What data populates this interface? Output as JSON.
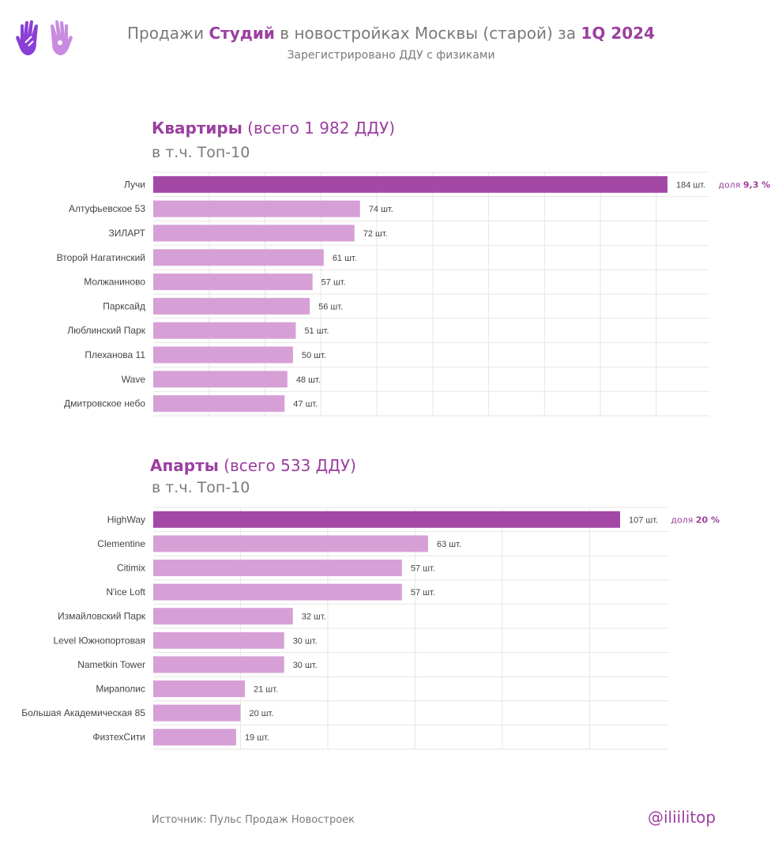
{
  "header": {
    "title_parts": [
      {
        "text": "Продажи ",
        "hl": false
      },
      {
        "text": "Студий",
        "hl": true
      },
      {
        "text": " в новостройках Москвы (старой) за ",
        "hl": false
      },
      {
        "text": "1Q 2024",
        "hl": true
      }
    ],
    "subtitle": "Зарегистрировано ДДУ с физиками"
  },
  "colors": {
    "accent": "#9b3fa0",
    "bar_top": "#a348a5",
    "bar": "#d6a0d6",
    "text_gray": "#7a7a7a",
    "grid": "#e6e6e6"
  },
  "icons": [
    "hands-logo-icon"
  ],
  "chart_data": [
    {
      "type": "bar",
      "orientation": "horizontal",
      "heading_bold": "Квартиры",
      "heading_rest": " (всего 1 982 ДДУ)",
      "subheading": "в т.ч. Топ-10",
      "categories": [
        "Лучи",
        "Алтуфьевское 53",
        "ЗИЛАРТ",
        "Второй Нагатинский",
        "Молжаниново",
        "Парксайд",
        "Люблинский Парк",
        "Плеханова 11",
        "Wave",
        "Дмитровское небо"
      ],
      "values": [
        184,
        74,
        72,
        61,
        57,
        56,
        51,
        50,
        48,
        47
      ],
      "value_labels": [
        "184 шт.",
        "74 шт.",
        "72 шт.",
        "61 шт.",
        "57 шт.",
        "56 шт.",
        "51 шт.",
        "50 шт.",
        "48 шт.",
        "47 шт."
      ],
      "share_prefix": "доля ",
      "share_value": "9,3 %",
      "xlim": [
        0,
        200
      ],
      "grid": true
    },
    {
      "type": "bar",
      "orientation": "horizontal",
      "heading_bold": "Апарты",
      "heading_rest": " (всего 533 ДДУ)",
      "subheading": "в т.ч. Топ-10",
      "categories": [
        "HighWay",
        "Clementine",
        "Citimix",
        "N'ice Loft",
        "Измайловский Парк",
        "Level Южнопортовая",
        "Nametkin Tower",
        "Мирaполис",
        "Большая Академическая 85",
        "ФизтехСити"
      ],
      "values": [
        107,
        63,
        57,
        57,
        32,
        30,
        30,
        21,
        20,
        19
      ],
      "value_labels": [
        "107 шт.",
        "63 шт.",
        "57 шт.",
        "57 шт.",
        "32 шт.",
        "30 шт.",
        "30 шт.",
        "21 шт.",
        "20 шт.",
        "19 шт."
      ],
      "share_prefix": "доля ",
      "share_value": "20 %",
      "xlim": [
        0,
        120
      ],
      "grid": true
    }
  ],
  "footer": {
    "source": "Источник: Пульс Продаж Новостроек",
    "handle": "@iliilitop"
  }
}
